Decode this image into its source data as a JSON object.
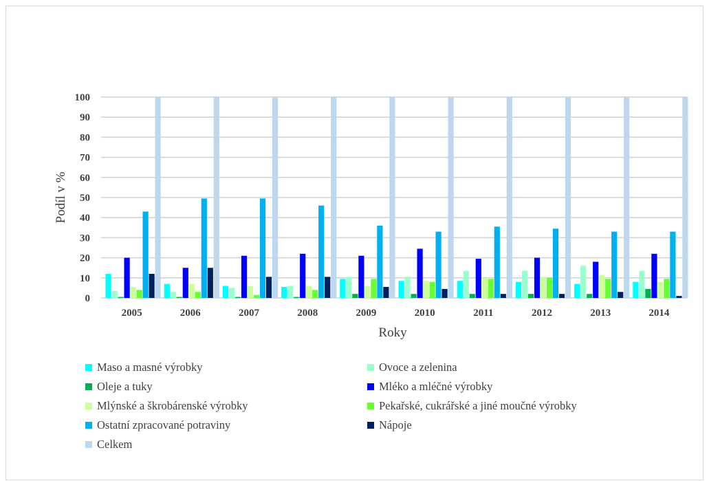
{
  "chart_data": {
    "type": "bar",
    "title": "",
    "xlabel": "Roky",
    "ylabel": "Podíl v %",
    "ylim": [
      0,
      100
    ],
    "yticks": [
      0,
      10,
      20,
      30,
      40,
      50,
      60,
      70,
      80,
      90,
      100
    ],
    "grid": true,
    "legend_position": "bottom",
    "categories": [
      "2005",
      "2006",
      "2007",
      "2008",
      "2009",
      "2010",
      "2011",
      "2012",
      "2013",
      "2014"
    ],
    "series": [
      {
        "name": "Maso a masné výrobky",
        "color": "#00ffff",
        "values": [
          12,
          7,
          6,
          5.5,
          9.5,
          8.5,
          8.5,
          8,
          7,
          8
        ]
      },
      {
        "name": "Ovoce a zelenina",
        "color": "#99ffcc",
        "values": [
          3.5,
          3,
          5,
          6,
          10.5,
          10.5,
          13.5,
          13.5,
          16,
          13.5
        ]
      },
      {
        "name": "Oleje a tuky",
        "color": "#00b050",
        "values": [
          0.5,
          0.5,
          0.5,
          0.5,
          2,
          2,
          2,
          2,
          2,
          4.5
        ]
      },
      {
        "name": "Mléko a mléčné výrobky",
        "color": "#0000ff",
        "values": [
          20,
          15,
          21,
          22,
          21,
          24.5,
          19.5,
          20,
          18,
          22
        ]
      },
      {
        "name": "Mlýnské a škrobárenské výrobky",
        "color": "#ccff99",
        "values": [
          5.5,
          7,
          6,
          6,
          6,
          8.5,
          10,
          10.5,
          11.5,
          8
        ]
      },
      {
        "name": "Pekařské, cukrářské a jiné moučné výrobky",
        "color": "#66ff33",
        "values": [
          4,
          3,
          1.5,
          4,
          9.5,
          8,
          9.5,
          10,
          9.5,
          9.5
        ]
      },
      {
        "name": "Ostatní zpracované potraviny",
        "color": "#00b0f0",
        "values": [
          43,
          49.5,
          49.5,
          46,
          36,
          33,
          35.5,
          34.5,
          33,
          33
        ]
      },
      {
        "name": "Nápoje",
        "color": "#002060",
        "values": [
          12,
          15,
          10.5,
          10.5,
          5.5,
          4.5,
          2,
          2,
          3,
          1
        ]
      },
      {
        "name": "Celkem",
        "color": "#bdd7ee",
        "values": [
          100,
          100,
          100,
          100,
          100,
          100,
          100,
          100,
          100,
          100
        ]
      }
    ]
  }
}
